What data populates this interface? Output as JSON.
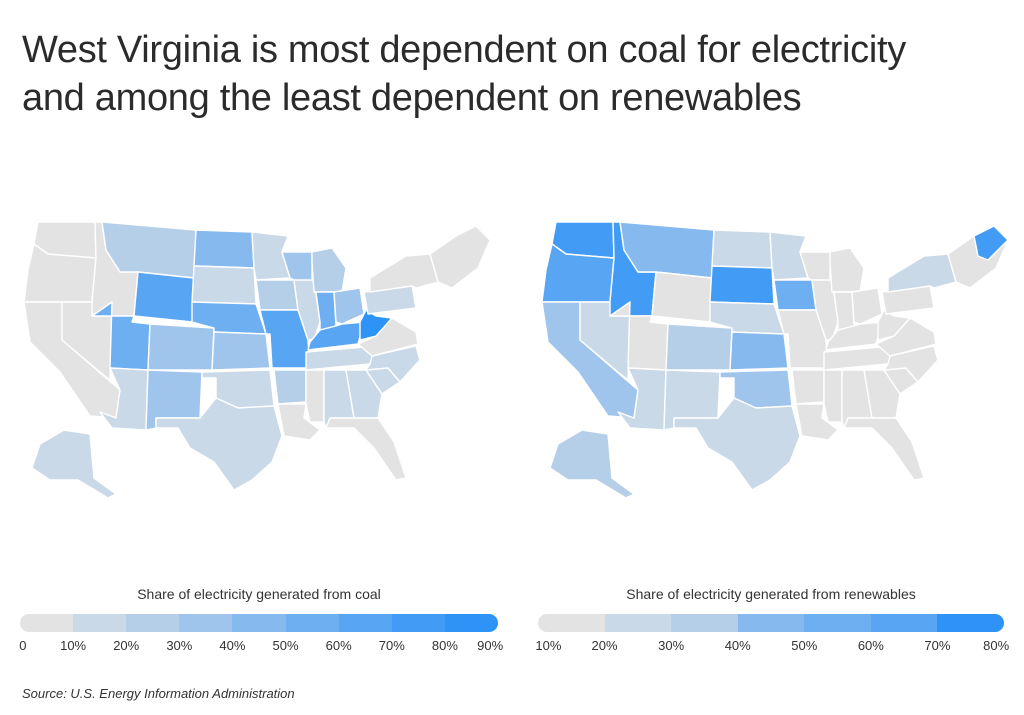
{
  "title_line1": "West Virginia is most dependent on coal for electricity",
  "title_line2": "and among the least dependent on renewables",
  "colors": {
    "c0": "#e3e3e3",
    "c1": "#c9d9e8",
    "c2": "#b6cfe9",
    "c3": "#9fc5ec",
    "c4": "#86baef",
    "c5": "#6eaff1",
    "c6": "#58a6f3",
    "c7": "#429cf5",
    "c8": "#2e93f7"
  },
  "coal_map": {
    "legend_title": "Share of electricity generated from coal",
    "legend_ticks": [
      "0",
      "10%",
      "20%",
      "30%",
      "40%",
      "50%",
      "60%",
      "70%",
      "80%",
      "90%"
    ],
    "states": {
      "WA": 0,
      "OR": 0,
      "CA": 0,
      "NV": 0,
      "ID": 0,
      "MT": 2,
      "WY": 6,
      "UT": 5,
      "CO": 3,
      "AZ": 1,
      "NM": 3,
      "ND": 4,
      "SD": 1,
      "NE": 5,
      "KS": 3,
      "OK": 1,
      "TX": 1,
      "MN": 1,
      "IA": 2,
      "MO": 6,
      "AR": 2,
      "LA": 0,
      "WI": 3,
      "IL": 1,
      "IN": 5,
      "MI": 2,
      "OH": 3,
      "KY": 6,
      "TN": 1,
      "MS": 0,
      "AL": 1,
      "GA": 1,
      "FL": 0,
      "SC": 1,
      "NC": 1,
      "VA": 0,
      "WV": 8,
      "PA": 1,
      "NY": 0,
      "NE_STATES": 0,
      "AK": 1
    }
  },
  "renew_map": {
    "legend_title": "Share of electricity generated from renewables",
    "legend_ticks": [
      "10%",
      "20%",
      "30%",
      "40%",
      "50%",
      "60%",
      "70%",
      "80%"
    ],
    "states": {
      "WA": 7,
      "OR": 6,
      "CA": 3,
      "NV": 1,
      "ID": 7,
      "MT": 4,
      "WY": 0,
      "UT": 0,
      "CO": 2,
      "AZ": 1,
      "NM": 1,
      "ND": 1,
      "SD": 7,
      "NE": 1,
      "KS": 4,
      "OK": 3,
      "TX": 1,
      "MN": 1,
      "IA": 5,
      "MO": 0,
      "AR": 0,
      "LA": 0,
      "WI": 0,
      "IL": 0,
      "IN": 0,
      "MI": 0,
      "OH": 0,
      "KY": 0,
      "TN": 0,
      "MS": 0,
      "AL": 0,
      "GA": 0,
      "FL": 0,
      "SC": 0,
      "NC": 0,
      "VA": 0,
      "WV": 0,
      "PA": 0,
      "NY": 1,
      "NE_STATES": 0,
      "ME": 7,
      "AK": 2
    }
  },
  "source": "Source:  U.S. Energy Information Administration"
}
